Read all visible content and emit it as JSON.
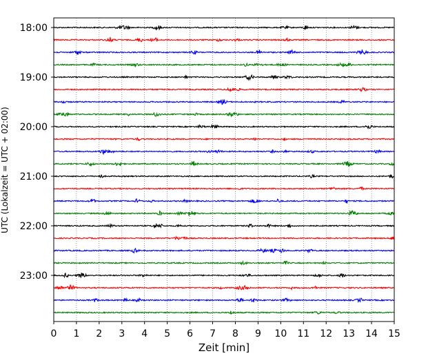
{
  "chart_data": {
    "type": "line",
    "subtype": "helicorder",
    "xlabel": "Zeit  [min]",
    "ylabel": "UTC (Lokalzeit = UTC + 02:00)",
    "xlim": [
      0,
      15
    ],
    "x_ticks": [
      "0",
      "1",
      "2",
      "3",
      "4",
      "5",
      "6",
      "7",
      "8",
      "9",
      "10",
      "11",
      "12",
      "13",
      "14",
      "15"
    ],
    "y_ticks": [
      "18:00",
      "19:00",
      "20:00",
      "21:00",
      "22:00",
      "23:00"
    ],
    "trace_minutes": 15,
    "traces_per_hour": 4,
    "color_cycle": [
      "#000000",
      "#ff0000",
      "#0000ff",
      "#008000"
    ],
    "grid": "vertical dotted at each minute",
    "traces": [
      {
        "start": "18:00"
      },
      {
        "start": "18:15"
      },
      {
        "start": "18:30"
      },
      {
        "start": "18:45"
      },
      {
        "start": "19:00"
      },
      {
        "start": "19:15"
      },
      {
        "start": "19:30"
      },
      {
        "start": "19:45"
      },
      {
        "start": "20:00"
      },
      {
        "start": "20:15"
      },
      {
        "start": "20:30"
      },
      {
        "start": "20:45"
      },
      {
        "start": "21:00"
      },
      {
        "start": "21:15"
      },
      {
        "start": "21:30"
      },
      {
        "start": "21:45"
      },
      {
        "start": "22:00"
      },
      {
        "start": "22:15"
      },
      {
        "start": "22:30"
      },
      {
        "start": "22:45"
      },
      {
        "start": "23:00"
      },
      {
        "start": "23:15"
      },
      {
        "start": "23:30"
      },
      {
        "start": "23:45"
      }
    ]
  }
}
